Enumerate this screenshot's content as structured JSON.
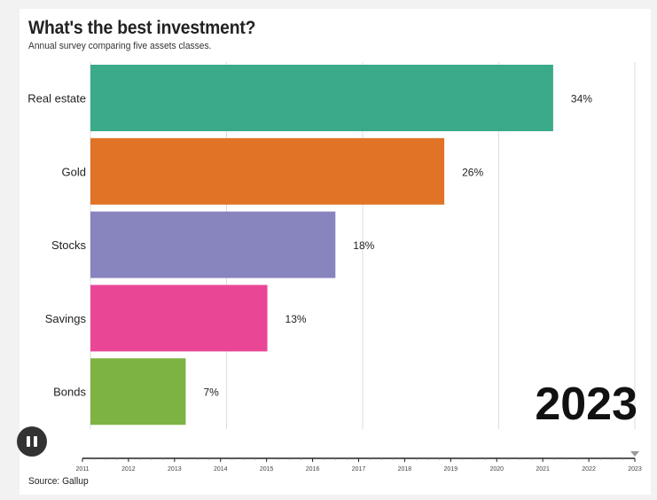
{
  "title": "What's the best investment?",
  "subtitle": "Annual survey comparing five assets classes.",
  "source": "Source: Gallup",
  "current_year": "2023",
  "timeline": {
    "years": [
      "2011",
      "2012",
      "2013",
      "2014",
      "2015",
      "2016",
      "2017",
      "2018",
      "2019",
      "2020",
      "2021",
      "2022",
      "2023"
    ],
    "selected_year": "2023",
    "playing": true,
    "control_icon": "pause-icon"
  },
  "colors": {
    "Real estate": "#3aaa8a",
    "Gold": "#e07325",
    "Stocks": "#8884be",
    "Savings": "#ea4696",
    "Bonds": "#7db343"
  },
  "chart_data": {
    "type": "bar",
    "orientation": "horizontal",
    "title": "What's the best investment?",
    "categories": [
      "Real estate",
      "Gold",
      "Stocks",
      "Savings",
      "Bonds"
    ],
    "values": [
      34,
      26,
      18,
      13,
      7
    ],
    "labels": [
      "34%",
      "26%",
      "18%",
      "13%",
      "7%"
    ],
    "xlim": [
      0,
      40
    ],
    "grid": true
  }
}
